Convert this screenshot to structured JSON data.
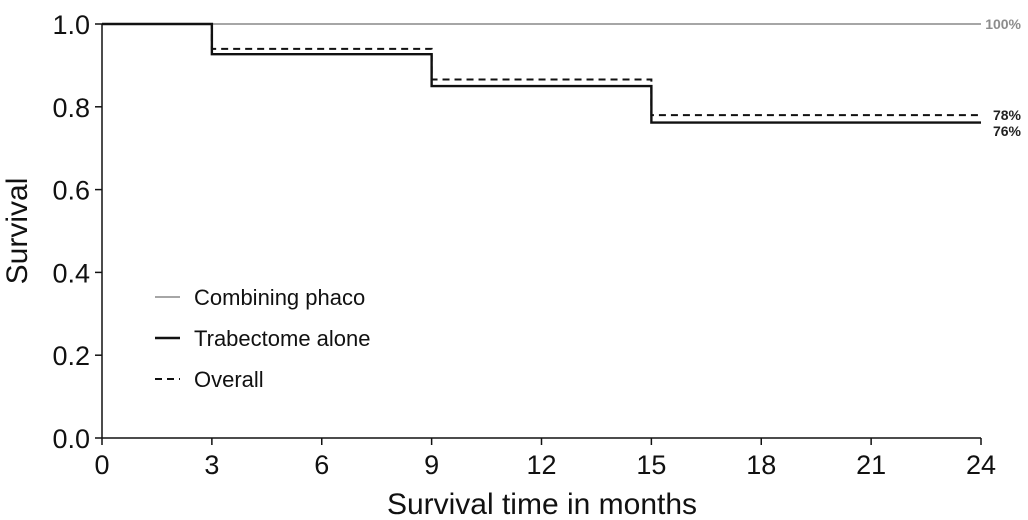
{
  "chart_data": {
    "type": "line",
    "step": true,
    "xlabel": "Survival time in months",
    "ylabel": "Survival",
    "xlim": [
      0,
      24
    ],
    "ylim": [
      0,
      1
    ],
    "xticks": [
      "0",
      "3",
      "6",
      "9",
      "12",
      "15",
      "18",
      "21",
      "24"
    ],
    "yticks": [
      "0.0",
      "0.2",
      "0.4",
      "0.6",
      "0.8",
      "1.0"
    ],
    "grid": false,
    "legend_position": "bottom-left",
    "series": [
      {
        "name": "Combining phaco",
        "style": "solid",
        "color": "#a6a6a6",
        "x": [
          0,
          24
        ],
        "y": [
          1.0,
          1.0
        ],
        "end_label": "100%"
      },
      {
        "name": "Trabectome alone",
        "style": "solid",
        "color": "#111111",
        "x": [
          0,
          3,
          9,
          15,
          24
        ],
        "y": [
          1.0,
          0.927,
          0.85,
          0.762,
          0.762
        ],
        "end_label": "76%"
      },
      {
        "name": "Overall",
        "style": "dashed",
        "color": "#111111",
        "x": [
          0,
          3,
          9,
          15,
          24
        ],
        "y": [
          1.0,
          0.94,
          0.866,
          0.78,
          0.78
        ],
        "end_label": "78%"
      }
    ]
  }
}
